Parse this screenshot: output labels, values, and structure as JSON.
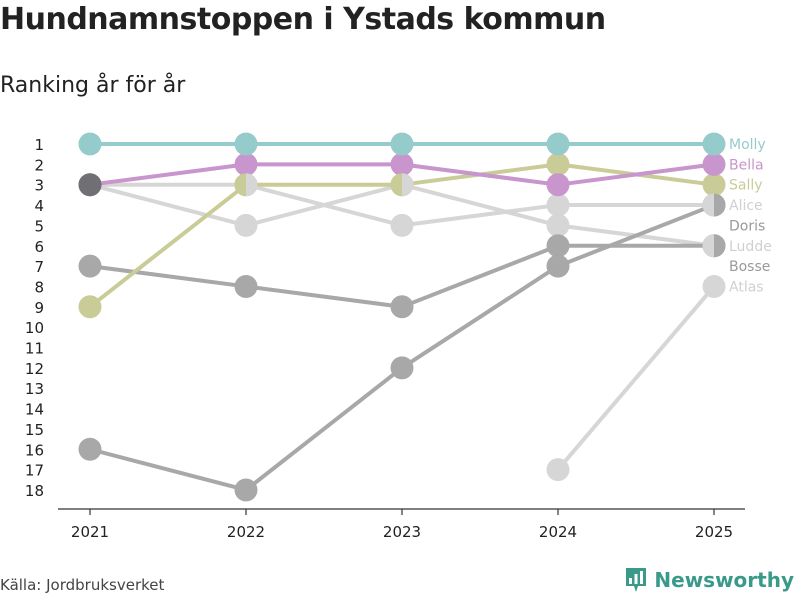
{
  "title": "Hundnamnstoppen i Ystads kommun",
  "subtitle": "Ranking år för år",
  "source": "Källa: Jordbruksverket",
  "brand": "Newsworthy",
  "chart_data": {
    "type": "line",
    "title": "Hundnamnstoppen i Ystads kommun",
    "subtitle": "Ranking år för år",
    "x": [
      "2021",
      "2022",
      "2023",
      "2024",
      "2025"
    ],
    "y_ticks": [
      1,
      2,
      3,
      4,
      5,
      6,
      7,
      8,
      9,
      10,
      11,
      12,
      13,
      14,
      15,
      16,
      17,
      18
    ],
    "ylim": [
      1,
      18
    ],
    "y_reversed": true,
    "series": [
      {
        "name": "Atlas",
        "color": "#d6d6d6",
        "values": [
          null,
          null,
          null,
          17,
          8
        ]
      },
      {
        "name": "Ludde",
        "color": "#d6d6d6",
        "values": [
          3,
          5,
          3,
          5,
          6
        ]
      },
      {
        "name": "Alice",
        "color": "#d6d6d6",
        "values": [
          3,
          3,
          5,
          4,
          4
        ]
      },
      {
        "name": "Bosse",
        "color": "#a8a8a8",
        "values": [
          7,
          8,
          9,
          6,
          6
        ]
      },
      {
        "name": "Doris",
        "color": "#a8a8a8",
        "values": [
          16,
          18,
          12,
          7,
          4
        ]
      },
      {
        "name": "Sally",
        "color": "#c9cc96",
        "values": [
          9,
          3,
          3,
          2,
          3
        ]
      },
      {
        "name": "Bella",
        "color": "#c895cd",
        "values": [
          3,
          2,
          2,
          3,
          2
        ]
      },
      {
        "name": "Molly",
        "color": "#96cbcb",
        "values": [
          1,
          1,
          1,
          1,
          1
        ]
      }
    ],
    "labels": [
      {
        "name": "Molly",
        "rank": 1,
        "color": "#96cbcb"
      },
      {
        "name": "Bella",
        "rank": 2,
        "color": "#c895cd"
      },
      {
        "name": "Sally",
        "rank": 3,
        "color": "#c9cc96"
      },
      {
        "name": "Alice",
        "rank": 4,
        "color": "#d0d0d0"
      },
      {
        "name": "Doris",
        "rank": 5,
        "color": "#999999"
      },
      {
        "name": "Ludde",
        "rank": 6,
        "color": "#d0d0d0"
      },
      {
        "name": "Bosse",
        "rank": 7,
        "color": "#999999"
      },
      {
        "name": "Atlas",
        "rank": 8,
        "color": "#d0d0d0"
      }
    ],
    "tie_marker_2021_rank3": "#6f6f74"
  }
}
